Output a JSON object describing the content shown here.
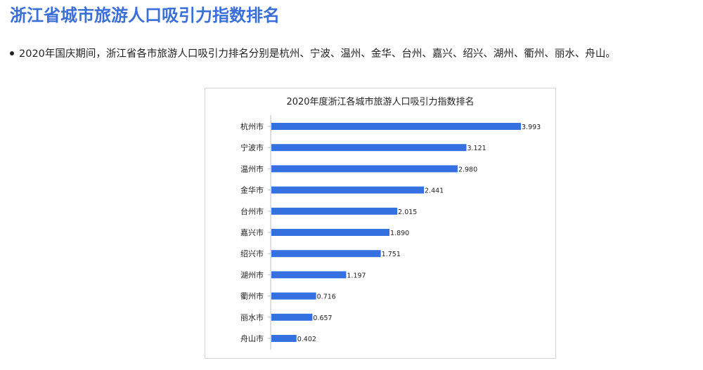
{
  "header": {
    "title": "浙江省城市旅游人口吸引力指数排名"
  },
  "bullet": {
    "text": "2020年国庆期间，浙江省各市旅游人口吸引力排名分别是杭州、宁波、温州、金华、台州、嘉兴、绍兴、湖州、衢州、丽水、舟山。"
  },
  "chart_data": {
    "type": "bar",
    "orientation": "horizontal",
    "title": "2020年度浙江各城市旅游人口吸引力指数排名",
    "categories": [
      "杭州市",
      "宁波市",
      "温州市",
      "金华市",
      "台州市",
      "嘉兴市",
      "绍兴市",
      "湖州市",
      "衢州市",
      "丽水市",
      "舟山市"
    ],
    "values": [
      3.993,
      3.121,
      2.98,
      2.441,
      2.015,
      1.89,
      1.751,
      1.197,
      0.716,
      0.657,
      0.402
    ],
    "value_labels": [
      "3.993",
      "3.121",
      "2.980",
      "2.441",
      "2.015",
      "1.890",
      "1.751",
      "1.197",
      "0.716",
      "0.657",
      "0.402"
    ],
    "xlim": [
      0,
      4
    ],
    "grid": false,
    "legend": "none",
    "bar_color": "#3470df"
  }
}
